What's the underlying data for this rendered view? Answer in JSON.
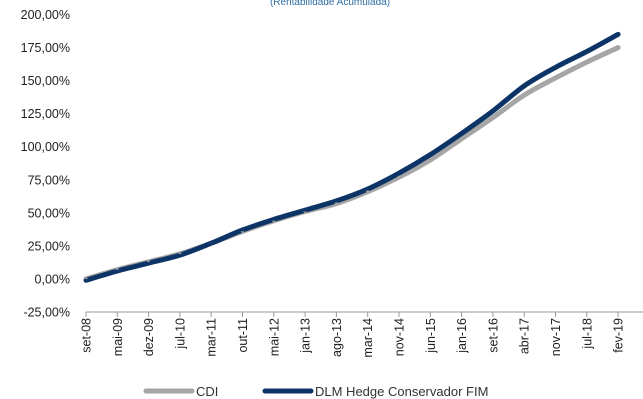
{
  "chart_data": {
    "type": "line",
    "subtitle": "(Rentabilidade Acumulada)",
    "x_ticks": [
      "set-08",
      "mai-09",
      "dez-09",
      "jul-10",
      "mar-11",
      "out-11",
      "mai-12",
      "jan-13",
      "ago-13",
      "mar-14",
      "nov-14",
      "jun-15",
      "jan-16",
      "set-16",
      "abr-17",
      "nov-17",
      "jul-18",
      "fev-19"
    ],
    "y_ticks": [
      "-25,00%",
      "0,00%",
      "25,00%",
      "50,00%",
      "75,00%",
      "100,00%",
      "125,00%",
      "150,00%",
      "175,00%",
      "200,00%"
    ],
    "ylim": [
      -25,
      200
    ],
    "grid": false,
    "legend_position": "bottom",
    "series": [
      {
        "name": "CDI",
        "color": "#a6a6a6",
        "x": [
          "set-08",
          "mai-09",
          "dez-09",
          "jul-10",
          "mar-11",
          "out-11",
          "mai-12",
          "jan-13",
          "ago-13",
          "mar-14",
          "nov-14",
          "jun-15",
          "jan-16",
          "set-16",
          "abr-17",
          "nov-17",
          "jul-18",
          "fev-19"
        ],
        "values": [
          0,
          7,
          13,
          19,
          27,
          36,
          44,
          51,
          57,
          66,
          77,
          90,
          106,
          122,
          139,
          152,
          164,
          175
        ]
      },
      {
        "name": "DLM Hedge Conservador FIM",
        "color": "#0c3466",
        "x": [
          "set-08",
          "mai-09",
          "dez-09",
          "jul-10",
          "mar-11",
          "out-11",
          "mai-12",
          "jan-13",
          "ago-13",
          "mar-14",
          "nov-14",
          "jun-15",
          "jan-16",
          "set-16",
          "abr-17",
          "nov-17",
          "jul-18",
          "fev-19"
        ],
        "values": [
          -1,
          6,
          12,
          18,
          27,
          37,
          45,
          52,
          59,
          68,
          80,
          94,
          110,
          127,
          146,
          160,
          172,
          185
        ]
      }
    ]
  }
}
